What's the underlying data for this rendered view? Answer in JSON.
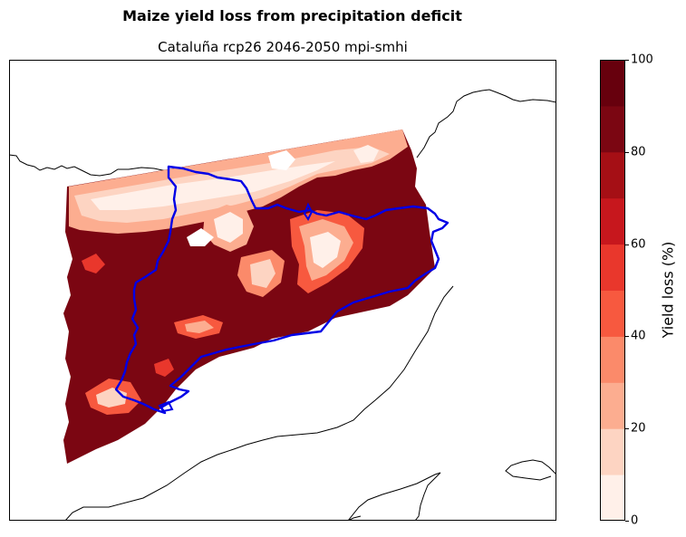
{
  "title": "Maize yield loss from precipitation deficit",
  "subtitle": "Cataluña rcp26 2046-2050 mpi-smhi",
  "colorbar": {
    "label": "Yield loss (%)",
    "ticks": [
      "0",
      "20",
      "40",
      "60",
      "80",
      "100"
    ],
    "tick_values": [
      0,
      20,
      40,
      60,
      80,
      100
    ],
    "levels": [
      0,
      10,
      20,
      30,
      40,
      50,
      60,
      70,
      80,
      90,
      100
    ],
    "colors": [
      "#fff0e9",
      "#fdd4c2",
      "#fcad90",
      "#fb8a6a",
      "#f7593f",
      "#e9372c",
      "#c7171d",
      "#a50f15",
      "#7b0612",
      "#67000d"
    ]
  },
  "map": {
    "region": "Cataluña",
    "dominant_value": 95,
    "boundary_color": "#0000ff",
    "coastline_color": "#000000"
  }
}
